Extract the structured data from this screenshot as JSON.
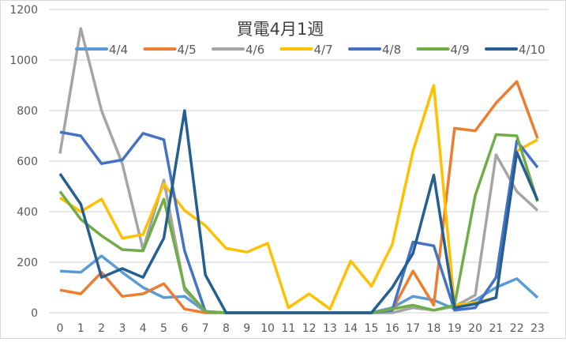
{
  "chart_data": {
    "type": "line",
    "title": "買電4月1週",
    "xlabel": "",
    "ylabel": "",
    "ylim": [
      0,
      1200
    ],
    "yticks": [
      0,
      200,
      400,
      600,
      800,
      1000,
      1200
    ],
    "grid": true,
    "legend_position": "top",
    "x": [
      0,
      1,
      2,
      3,
      4,
      5,
      6,
      7,
      8,
      9,
      10,
      11,
      12,
      13,
      14,
      15,
      16,
      17,
      18,
      19,
      20,
      21,
      22,
      23
    ],
    "series": [
      {
        "name": "4/4",
        "color": "#5B9BD5",
        "values": [
          165,
          160,
          225,
          160,
          100,
          60,
          65,
          5,
          0,
          0,
          0,
          0,
          0,
          0,
          0,
          0,
          20,
          65,
          50,
          15,
          50,
          100,
          135,
          60
        ]
      },
      {
        "name": "4/5",
        "color": "#ED7D31",
        "values": [
          90,
          75,
          160,
          65,
          75,
          115,
          15,
          0,
          0,
          0,
          0,
          0,
          0,
          0,
          0,
          0,
          10,
          165,
          30,
          730,
          720,
          830,
          915,
          690
        ]
      },
      {
        "name": "4/6",
        "color": "#A5A5A5",
        "values": [
          630,
          1125,
          800,
          590,
          250,
          525,
          90,
          5,
          0,
          0,
          0,
          0,
          0,
          0,
          0,
          0,
          0,
          20,
          10,
          25,
          70,
          625,
          480,
          405
        ]
      },
      {
        "name": "4/7",
        "color": "#FFC000",
        "values": [
          455,
          400,
          450,
          295,
          310,
          510,
          405,
          345,
          255,
          240,
          275,
          20,
          75,
          15,
          205,
          105,
          270,
          640,
          900,
          30,
          40,
          60,
          640,
          685
        ]
      },
      {
        "name": "4/8",
        "color": "#4472C4",
        "values": [
          715,
          700,
          590,
          605,
          710,
          685,
          245,
          5,
          0,
          0,
          0,
          0,
          0,
          0,
          0,
          0,
          10,
          280,
          265,
          10,
          20,
          140,
          680,
          575
        ]
      },
      {
        "name": "4/9",
        "color": "#70AD47",
        "values": [
          480,
          370,
          305,
          250,
          245,
          450,
          100,
          5,
          0,
          0,
          0,
          0,
          0,
          0,
          0,
          0,
          15,
          30,
          10,
          30,
          465,
          705,
          700,
          440
        ]
      },
      {
        "name": "4/10",
        "color": "#255E91",
        "values": [
          550,
          430,
          140,
          175,
          140,
          295,
          800,
          150,
          0,
          0,
          0,
          0,
          0,
          0,
          0,
          0,
          100,
          235,
          545,
          20,
          35,
          60,
          635,
          445
        ]
      }
    ]
  }
}
